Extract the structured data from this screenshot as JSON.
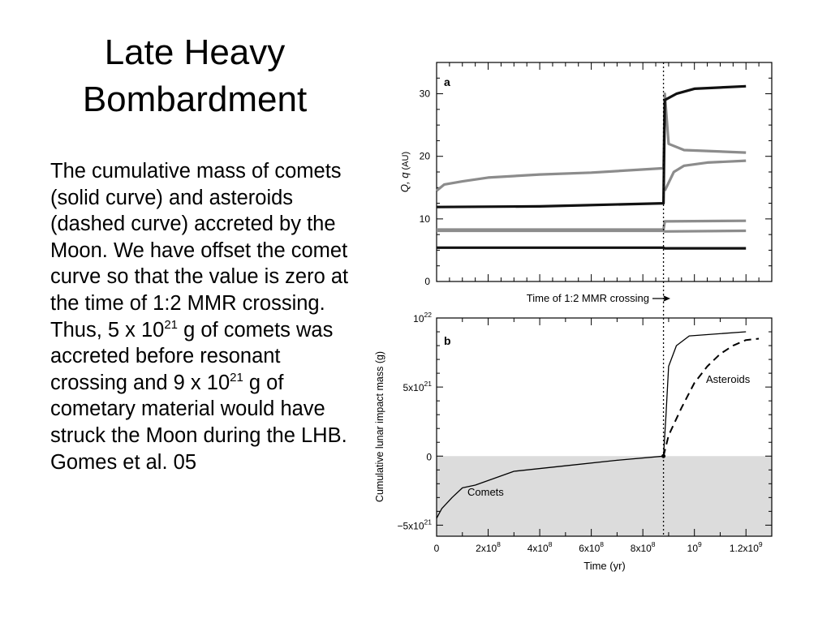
{
  "slide": {
    "title_line1": "Late Heavy",
    "title_line2": "Bombardment",
    "body": {
      "p1": "The cumulative mass of comets (solid curve) and asteroids (dashed curve) accreted by the Moon. We have offset the comet curve so that the value is zero at the time of 1:2 MMR crossing. Thus, 5 x 10",
      "sup1": "21",
      "p2": " g of comets was accreted before resonant crossing and 9 x 10",
      "sup2": "21",
      "p3": " g of cometary material would have struck the Moon during the LHB.   Gomes et al. 05"
    }
  },
  "colors": {
    "gray_curve": "#8c8c8c",
    "black_curve": "#111111",
    "shade": "#dcdcdc"
  },
  "chart_data": [
    {
      "panel": "a",
      "type": "line",
      "ylabel_main": "Q, q",
      "ylabel_unit": "(AU)",
      "ylim": [
        0,
        35
      ],
      "yticks": [
        0,
        10,
        20,
        30
      ],
      "xlim": [
        0,
        1300000000.0
      ],
      "crossing_time": 880000000.0,
      "annotation": "Time of 1:2 MMR crossing",
      "series": [
        {
          "color": "gray",
          "points": [
            [
              0,
              14.5
            ],
            [
              30000000.0,
              15.5
            ],
            [
              100000000.0,
              16
            ],
            [
              200000000.0,
              16.6
            ],
            [
              400000000.0,
              17.1
            ],
            [
              600000000.0,
              17.4
            ],
            [
              880000000.0,
              18.1
            ],
            [
              885000000.0,
              30
            ],
            [
              900000000.0,
              22
            ],
            [
              960000000.0,
              21
            ],
            [
              1200000000.0,
              20.6
            ]
          ]
        },
        {
          "color": "gray",
          "points": [
            [
              885000000.0,
              14.5
            ],
            [
              920000000.0,
              17.5
            ],
            [
              960000000.0,
              18.5
            ],
            [
              1050000000.0,
              19
            ],
            [
              1200000000.0,
              19.3
            ]
          ]
        },
        {
          "color": "black",
          "points": [
            [
              0,
              11.9
            ],
            [
              400000000.0,
              12
            ],
            [
              880000000.0,
              12.5
            ],
            [
              885000000.0,
              29
            ],
            [
              930000000.0,
              30
            ],
            [
              1000000000.0,
              30.8
            ],
            [
              1200000000.0,
              31.2
            ]
          ]
        },
        {
          "color": "gray",
          "points": [
            [
              0,
              8.3
            ],
            [
              880000000.0,
              8.3
            ],
            [
              885000000.0,
              9.6
            ],
            [
              1200000000.0,
              9.7
            ]
          ]
        },
        {
          "color": "gray",
          "points": [
            [
              0,
              8.1
            ],
            [
              880000000.0,
              8.1
            ],
            [
              885000000.0,
              8
            ],
            [
              1200000000.0,
              8.1
            ]
          ]
        },
        {
          "color": "black",
          "points": [
            [
              0,
              5.4
            ],
            [
              880000000.0,
              5.4
            ],
            [
              885000000.0,
              5.3
            ],
            [
              1200000000.0,
              5.3
            ]
          ]
        }
      ]
    },
    {
      "panel": "b",
      "type": "line",
      "xlabel": "Time (yr)",
      "ylabel": "Cumulative lunar impact mass (g)",
      "xlim": [
        0,
        1300000000.0
      ],
      "ylim": [
        -5.8e+21,
        1e+22
      ],
      "crossing_time": 880000000.0,
      "xtick_labels": [
        {
          "value": 0,
          "base": "0",
          "exp": ""
        },
        {
          "value": 200000000.0,
          "base": "2x10",
          "exp": "8"
        },
        {
          "value": 400000000.0,
          "base": "4x10",
          "exp": "8"
        },
        {
          "value": 600000000.0,
          "base": "6x10",
          "exp": "8"
        },
        {
          "value": 800000000.0,
          "base": "8x10",
          "exp": "8"
        },
        {
          "value": 1000000000.0,
          "base": "10",
          "exp": "9"
        },
        {
          "value": 1200000000.0,
          "base": "1.2x10",
          "exp": "9"
        }
      ],
      "ytick_labels": [
        {
          "value": 1e+22,
          "base": "10",
          "exp": "22"
        },
        {
          "value": 5e+21,
          "base": "5x10",
          "exp": "21"
        },
        {
          "value": 0,
          "base": "0",
          "exp": ""
        },
        {
          "value": -5e+21,
          "base": "−5x10",
          "exp": "21"
        }
      ],
      "series": [
        {
          "name": "Comets",
          "style": "solid",
          "points": [
            [
              0,
              -4.5e+21
            ],
            [
              20000000.0,
              -3.8e+21
            ],
            [
              60000000.0,
              -3e+21
            ],
            [
              100000000.0,
              -2.3e+21
            ],
            [
              150000000.0,
              -2.1e+21
            ],
            [
              300000000.0,
              -1.1e+21
            ],
            [
              500000000.0,
              -7e+20
            ],
            [
              700000000.0,
              -3e+20
            ],
            [
              880000000.0,
              0
            ],
            [
              890000000.0,
              3e+21
            ],
            [
              900000000.0,
              6.5e+21
            ],
            [
              930000000.0,
              8e+21
            ],
            [
              980000000.0,
              8.7e+21
            ],
            [
              1200000000.0,
              9e+21
            ]
          ]
        },
        {
          "name": "Asteroids",
          "style": "dashed",
          "points": [
            [
              880000000.0,
              0
            ],
            [
              900000000.0,
              1.5e+21
            ],
            [
              950000000.0,
              3.5e+21
            ],
            [
              1000000000.0,
              5.3e+21
            ],
            [
              1050000000.0,
              6.5e+21
            ],
            [
              1100000000.0,
              7.4e+21
            ],
            [
              1150000000.0,
              8e+21
            ],
            [
              1200000000.0,
              8.4e+21
            ],
            [
              1250000000.0,
              8.5e+21
            ]
          ]
        }
      ]
    }
  ]
}
